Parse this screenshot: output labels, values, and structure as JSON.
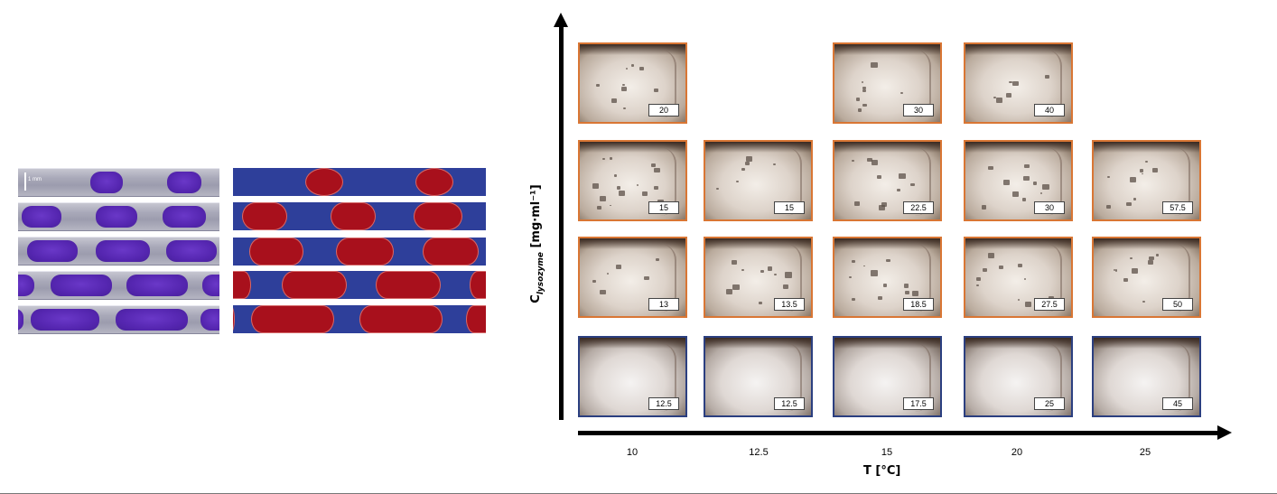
{
  "photo_strip": {
    "scale_label": "1 mm"
  },
  "chart": {
    "y_label_main": "C",
    "y_label_sub": "lysozyme",
    "y_label_unit": " [mg·ml⁻¹]",
    "x_label": "T [°C]",
    "x_ticks": [
      "10",
      "12.5",
      "15",
      "20",
      "25"
    ],
    "rows": [
      {
        "cells": [
          {
            "value": "20",
            "state": "crystal"
          },
          null,
          {
            "value": "30",
            "state": "crystal"
          },
          {
            "value": "40",
            "state": "crystal"
          },
          null
        ]
      },
      {
        "cells": [
          {
            "value": "15",
            "state": "crystal"
          },
          {
            "value": "15",
            "state": "crystal"
          },
          {
            "value": "22.5",
            "state": "crystal"
          },
          {
            "value": "30",
            "state": "crystal"
          },
          {
            "value": "57.5",
            "state": "crystal"
          }
        ]
      },
      {
        "cells": [
          {
            "value": "13",
            "state": "crystal"
          },
          {
            "value": "13.5",
            "state": "crystal"
          },
          {
            "value": "18.5",
            "state": "crystal"
          },
          {
            "value": "27.5",
            "state": "crystal"
          },
          {
            "value": "50",
            "state": "crystal"
          }
        ]
      },
      {
        "cells": [
          {
            "value": "12.5",
            "state": "clear"
          },
          {
            "value": "12.5",
            "state": "clear"
          },
          {
            "value": "17.5",
            "state": "clear"
          },
          {
            "value": "25",
            "state": "clear"
          },
          {
            "value": "45",
            "state": "clear"
          }
        ]
      }
    ]
  },
  "colors": {
    "crystal_border": "#d97634",
    "clear_border": "#2b3f80",
    "schematic_plug": "#a8101c",
    "schematic_carrier": "#2e3f9a",
    "photo_plug": "#5526b0"
  }
}
